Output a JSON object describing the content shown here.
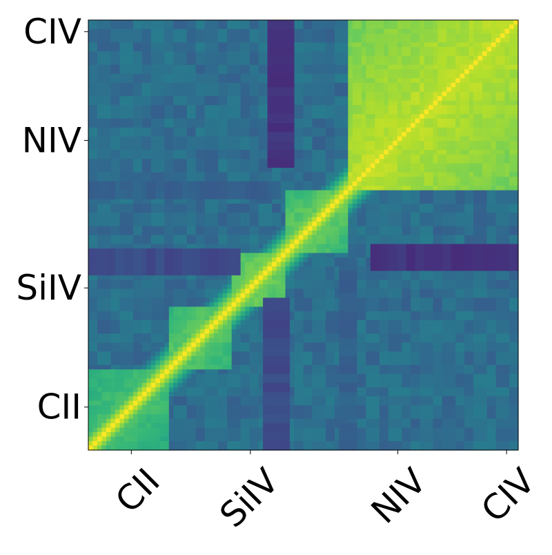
{
  "chart_data": {
    "type": "heatmap",
    "title": "",
    "xlabel": "",
    "ylabel": "",
    "colormap": "viridis",
    "x_ticks": [
      {
        "label": "CII",
        "value": 0.1
      },
      {
        "label": "SiIV",
        "value": 0.377
      },
      {
        "label": "NIV",
        "value": 0.72
      },
      {
        "label": "CIV",
        "value": 0.973
      }
    ],
    "y_ticks": [
      {
        "label": "CII",
        "value": 0.1
      },
      {
        "label": "SiIV",
        "value": 0.377
      },
      {
        "label": "NIV",
        "value": 0.72
      },
      {
        "label": "CIV",
        "value": 0.973
      }
    ],
    "blocks": [
      {
        "from": 0.0,
        "to": 0.19,
        "level": 0.72
      },
      {
        "from": 0.19,
        "to": 0.33,
        "level": 0.76
      },
      {
        "from": 0.33,
        "to": 0.46,
        "level": 0.8
      },
      {
        "from": 0.46,
        "to": 0.6,
        "level": 0.78
      },
      {
        "from": 0.6,
        "to": 1.0,
        "level": 0.9
      }
    ],
    "background_level": 0.36,
    "dark_bands": [
      {
        "axis": "x",
        "center": 0.445,
        "width": 0.03,
        "range": [
          0.66,
          1.0
        ],
        "level": 0.12
      },
      {
        "axis": "y",
        "center": 0.445,
        "width": 0.03,
        "range": [
          0.66,
          1.0
        ],
        "level": 0.12
      },
      {
        "axis": "x",
        "center": 0.44,
        "width": 0.03,
        "range": [
          0.0,
          0.35
        ],
        "level": 0.2
      },
      {
        "axis": "y",
        "center": 0.44,
        "width": 0.03,
        "range": [
          0.0,
          0.35
        ],
        "level": 0.2
      },
      {
        "axis": "x",
        "center": 0.6,
        "width": 0.02,
        "range": [
          0.0,
          0.45
        ],
        "level": 0.28
      },
      {
        "axis": "y",
        "center": 0.6,
        "width": 0.02,
        "range": [
          0.0,
          0.45
        ],
        "level": 0.28
      }
    ]
  }
}
